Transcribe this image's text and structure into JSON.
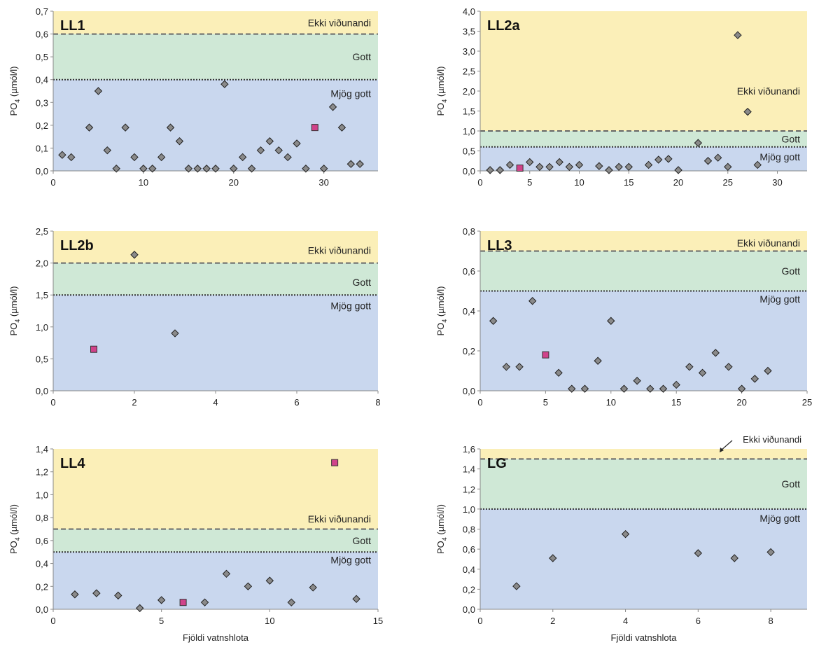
{
  "figure": {
    "xlabel": "Fjöldi vatnshlota",
    "ylabel_main": "PO",
    "ylabel_sub": "4",
    "ylabel_unit": " (µmól/l)"
  },
  "colors": {
    "band_bad": "#fbefb8",
    "band_good": "#cfe8d6",
    "band_very_good": "#c9d7ee",
    "point_fill": "#8a8a8a",
    "square_fill": "#d0438a",
    "line_dashed": "#666666",
    "line_dotted": "#333333"
  },
  "chart_data": [
    {
      "type": "scatter",
      "title": "LL1",
      "xlim": [
        0,
        36
      ],
      "xticks": [
        0,
        10,
        20,
        30
      ],
      "ylim": [
        0,
        0.7
      ],
      "yticks": [
        "0,0",
        "0,1",
        "0,2",
        "0,3",
        "0,4",
        "0,5",
        "0,6",
        "0,7"
      ],
      "yticks_values": [
        0,
        0.1,
        0.2,
        0.3,
        0.4,
        0.5,
        0.6,
        0.7
      ],
      "thresholds": {
        "good_upper": 0.6,
        "very_good_upper": 0.4
      },
      "band_labels": [
        {
          "text": "Ekki viðunandi",
          "y": 0.65
        },
        {
          "text": "Gott",
          "y": 0.5
        },
        {
          "text": "Mjög gott",
          "y": 0.34
        }
      ],
      "x_label_shown": false,
      "points": [
        [
          1,
          0.07
        ],
        [
          2,
          0.06
        ],
        [
          4,
          0.19
        ],
        [
          5,
          0.35
        ],
        [
          6,
          0.09
        ],
        [
          7,
          0.01
        ],
        [
          8,
          0.19
        ],
        [
          9,
          0.06
        ],
        [
          10,
          0.01
        ],
        [
          11,
          0.01
        ],
        [
          12,
          0.06
        ],
        [
          13,
          0.19
        ],
        [
          14,
          0.13
        ],
        [
          15,
          0.01
        ],
        [
          16,
          0.01
        ],
        [
          17,
          0.01
        ],
        [
          18,
          0.01
        ],
        [
          19,
          0.38
        ],
        [
          20,
          0.01
        ],
        [
          21,
          0.06
        ],
        [
          22,
          0.01
        ],
        [
          23,
          0.09
        ],
        [
          24,
          0.13
        ],
        [
          25,
          0.09
        ],
        [
          26,
          0.06
        ],
        [
          27,
          0.12
        ],
        [
          28,
          0.01
        ],
        [
          30,
          0.01
        ],
        [
          31,
          0.28
        ],
        [
          32,
          0.19
        ],
        [
          33,
          0.03
        ],
        [
          34,
          0.03
        ]
      ],
      "squares": [
        [
          29,
          0.19
        ]
      ]
    },
    {
      "type": "scatter",
      "title": "LL2a",
      "xlim": [
        0,
        33
      ],
      "xticks": [
        0,
        5,
        10,
        15,
        20,
        25,
        30
      ],
      "ylim": [
        0,
        4
      ],
      "yticks": [
        "0,0",
        "0,5",
        "1,0",
        "1,5",
        "2,0",
        "2,5",
        "3,0",
        "3,5",
        "4,0"
      ],
      "yticks_values": [
        0,
        0.5,
        1,
        1.5,
        2,
        2.5,
        3,
        3.5,
        4
      ],
      "thresholds": {
        "good_upper": 1.0,
        "very_good_upper": 0.6
      },
      "band_labels": [
        {
          "text": "Ekki viðunandi",
          "y": 2.0
        },
        {
          "text": "Gott",
          "y": 0.8
        },
        {
          "text": "Mjög gott",
          "y": 0.35
        }
      ],
      "x_label_shown": false,
      "points": [
        [
          1,
          0.02
        ],
        [
          2,
          0.02
        ],
        [
          3,
          0.15
        ],
        [
          5,
          0.22
        ],
        [
          6,
          0.1
        ],
        [
          7,
          0.1
        ],
        [
          8,
          0.22
        ],
        [
          9,
          0.1
        ],
        [
          10,
          0.15
        ],
        [
          12,
          0.12
        ],
        [
          13,
          0.02
        ],
        [
          14,
          0.1
        ],
        [
          15,
          0.1
        ],
        [
          17,
          0.15
        ],
        [
          18,
          0.28
        ],
        [
          19,
          0.3
        ],
        [
          20,
          0.02
        ],
        [
          22,
          0.7
        ],
        [
          23,
          0.25
        ],
        [
          24,
          0.33
        ],
        [
          25,
          0.1
        ],
        [
          26,
          3.4
        ],
        [
          27,
          1.48
        ],
        [
          28,
          0.15
        ]
      ],
      "squares": [
        [
          4,
          0.07
        ]
      ]
    },
    {
      "type": "scatter",
      "title": "LL2b",
      "xlim": [
        0,
        8
      ],
      "xticks": [
        0,
        2,
        4,
        6,
        8
      ],
      "ylim": [
        0,
        2.5
      ],
      "yticks": [
        "0,0",
        "0,5",
        "1,0",
        "1,5",
        "2,0",
        "2,5"
      ],
      "yticks_values": [
        0,
        0.5,
        1,
        1.5,
        2,
        2.5
      ],
      "thresholds": {
        "good_upper": 2.0,
        "very_good_upper": 1.5
      },
      "band_labels": [
        {
          "text": "Ekki viðunandi",
          "y": 2.2
        },
        {
          "text": "Gott",
          "y": 1.7
        },
        {
          "text": "Mjög gott",
          "y": 1.33
        }
      ],
      "x_label_shown": false,
      "points": [
        [
          2,
          2.13
        ],
        [
          3,
          0.9
        ]
      ],
      "squares": [
        [
          1,
          0.65
        ]
      ]
    },
    {
      "type": "scatter",
      "title": "LL3",
      "xlim": [
        0,
        25
      ],
      "xticks": [
        0,
        5,
        10,
        15,
        20,
        25
      ],
      "ylim": [
        0,
        0.8
      ],
      "yticks": [
        "0,0",
        "0,2",
        "0,4",
        "0,6",
        "0,8"
      ],
      "yticks_values": [
        0,
        0.2,
        0.4,
        0.6,
        0.8
      ],
      "thresholds": {
        "good_upper": 0.7,
        "very_good_upper": 0.5
      },
      "band_labels": [
        {
          "text": "Ekki viðunandi",
          "y": 0.74
        },
        {
          "text": "Gott",
          "y": 0.6
        },
        {
          "text": "Mjög gott",
          "y": 0.46
        }
      ],
      "x_label_shown": false,
      "points": [
        [
          1,
          0.35
        ],
        [
          2,
          0.12
        ],
        [
          3,
          0.12
        ],
        [
          4,
          0.45
        ],
        [
          6,
          0.09
        ],
        [
          7,
          0.01
        ],
        [
          8,
          0.01
        ],
        [
          9,
          0.15
        ],
        [
          10,
          0.35
        ],
        [
          11,
          0.01
        ],
        [
          12,
          0.05
        ],
        [
          13,
          0.01
        ],
        [
          14,
          0.01
        ],
        [
          15,
          0.03
        ],
        [
          16,
          0.12
        ],
        [
          17,
          0.09
        ],
        [
          18,
          0.19
        ],
        [
          19,
          0.12
        ],
        [
          20,
          0.01
        ],
        [
          21,
          0.06
        ],
        [
          22,
          0.1
        ]
      ],
      "squares": [
        [
          5,
          0.18
        ]
      ]
    },
    {
      "type": "scatter",
      "title": "LL4",
      "xlim": [
        0,
        15
      ],
      "xticks": [
        0,
        5,
        10,
        15
      ],
      "ylim": [
        0,
        1.4
      ],
      "yticks": [
        "0,0",
        "0,2",
        "0,4",
        "0,6",
        "0,8",
        "1,0",
        "1,2",
        "1,4"
      ],
      "yticks_values": [
        0,
        0.2,
        0.4,
        0.6,
        0.8,
        1,
        1.2,
        1.4
      ],
      "thresholds": {
        "good_upper": 0.7,
        "very_good_upper": 0.5
      },
      "band_labels": [
        {
          "text": "Ekki viðunandi",
          "y": 0.79
        },
        {
          "text": "Gott",
          "y": 0.6
        },
        {
          "text": "Mjög gott",
          "y": 0.43
        }
      ],
      "x_label_shown": true,
      "points": [
        [
          1,
          0.13
        ],
        [
          2,
          0.14
        ],
        [
          3,
          0.12
        ],
        [
          4,
          0.01
        ],
        [
          5,
          0.08
        ],
        [
          7,
          0.06
        ],
        [
          8,
          0.31
        ],
        [
          9,
          0.2
        ],
        [
          10,
          0.25
        ],
        [
          11,
          0.06
        ],
        [
          12,
          0.19
        ],
        [
          14,
          0.09
        ]
      ],
      "squares": [
        [
          6,
          0.06
        ],
        [
          13,
          1.28
        ]
      ]
    },
    {
      "type": "scatter",
      "title": "LG",
      "xlim": [
        0,
        9
      ],
      "xticks": [
        0,
        2,
        4,
        6,
        8
      ],
      "ylim": [
        0,
        1.6
      ],
      "yticks": [
        "0,0",
        "0,2",
        "0,4",
        "0,6",
        "0,8",
        "1,0",
        "1,2",
        "1,4",
        "1,6"
      ],
      "yticks_values": [
        0,
        0.2,
        0.4,
        0.6,
        0.8,
        1,
        1.2,
        1.4,
        1.6
      ],
      "thresholds": {
        "good_upper": 1.5,
        "very_good_upper": 1.0
      },
      "band_labels": [
        {
          "text": "Gott",
          "y": 1.25
        },
        {
          "text": "Mjög gott",
          "y": 0.91
        }
      ],
      "callout_label": "Ekki viðunandi",
      "x_label_shown": true,
      "points": [
        [
          1,
          0.23
        ],
        [
          2,
          0.51
        ],
        [
          4,
          0.75
        ],
        [
          6,
          0.56
        ],
        [
          7,
          0.51
        ],
        [
          8,
          0.57
        ]
      ],
      "squares": []
    }
  ]
}
